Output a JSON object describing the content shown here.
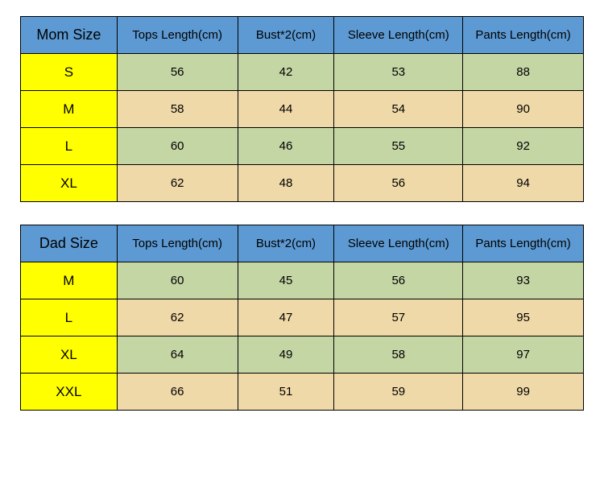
{
  "colors": {
    "header_bg": "#5d9ad3",
    "size_col_bg": "#ffff00",
    "row_even_bg": "#c5d6a5",
    "row_odd_bg": "#f0d9a8",
    "border": "#000000",
    "text": "#000000"
  },
  "tables": [
    {
      "corner": "Mom Size",
      "columns": [
        "Tops Length(cm)",
        "Bust*2(cm)",
        "Sleeve Length(cm)",
        "Pants Length(cm)"
      ],
      "rows": [
        {
          "size": "S",
          "values": [
            "56",
            "42",
            "53",
            "88"
          ]
        },
        {
          "size": "M",
          "values": [
            "58",
            "44",
            "54",
            "90"
          ]
        },
        {
          "size": "L",
          "values": [
            "60",
            "46",
            "55",
            "92"
          ]
        },
        {
          "size": "XL",
          "values": [
            "62",
            "48",
            "56",
            "94"
          ]
        }
      ]
    },
    {
      "corner": "Dad Size",
      "columns": [
        "Tops Length(cm)",
        "Bust*2(cm)",
        "Sleeve Length(cm)",
        "Pants Length(cm)"
      ],
      "rows": [
        {
          "size": "M",
          "values": [
            "60",
            "45",
            "56",
            "93"
          ]
        },
        {
          "size": "L",
          "values": [
            "62",
            "47",
            "57",
            "95"
          ]
        },
        {
          "size": "XL",
          "values": [
            "64",
            "49",
            "58",
            "97"
          ]
        },
        {
          "size": "XXL",
          "values": [
            "66",
            "51",
            "59",
            "99"
          ]
        }
      ]
    }
  ]
}
